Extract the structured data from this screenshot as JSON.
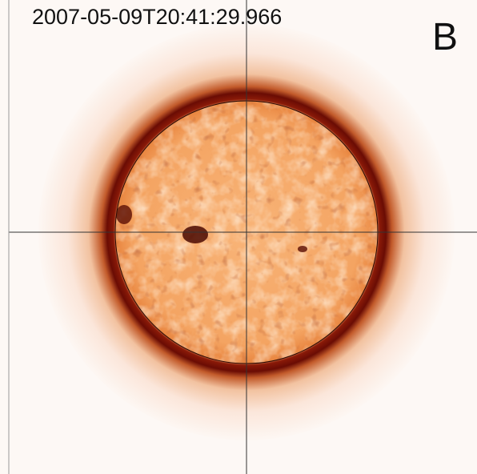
{
  "timestamp": "2007-05-09T20:41:29.966",
  "panel_label": "B"
}
